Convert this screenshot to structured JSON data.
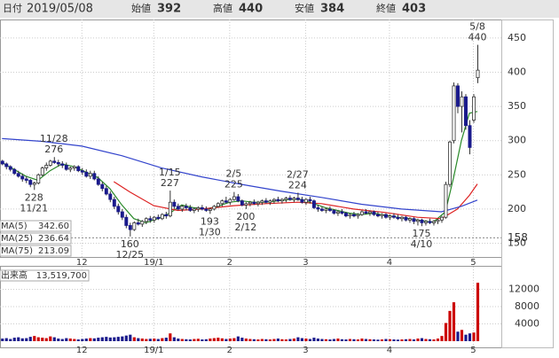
{
  "header": {
    "date_label": "日付",
    "date": "2019/05/08",
    "fields": [
      {
        "label": "始値",
        "value": 392,
        "color": "#222222"
      },
      {
        "label": "高値",
        "value": 440,
        "color": "#cc0000"
      },
      {
        "label": "安値",
        "value": 384,
        "color": "#1a1a8c"
      },
      {
        "label": "終値",
        "value": 403,
        "color": "#222222"
      }
    ]
  },
  "chart_data": {
    "type": "candlestick",
    "xlim": [
      -0.5,
      125
    ],
    "xticks": [
      {
        "value": 20,
        "label": "12"
      },
      {
        "value": 38,
        "label": "19/1"
      },
      {
        "value": 57,
        "label": "2"
      },
      {
        "value": 76,
        "label": "3"
      },
      {
        "value": 97,
        "label": "4"
      },
      {
        "value": 118,
        "label": "5"
      }
    ],
    "ylim": [
      130,
      477
    ],
    "yticks": [
      150,
      200,
      250,
      300,
      350,
      400,
      450
    ],
    "grid": true,
    "up_color": "#ffffff",
    "down_color": "#1a1a8c",
    "reference_line": {
      "value": 158,
      "color": "#e07020"
    },
    "candles": [
      [
        270,
        272,
        264,
        266
      ],
      [
        266,
        268,
        258,
        262
      ],
      [
        262,
        264,
        255,
        258
      ],
      [
        258,
        260,
        250,
        252
      ],
      [
        252,
        256,
        246,
        248
      ],
      [
        248,
        252,
        240,
        244
      ],
      [
        244,
        248,
        238,
        242
      ],
      [
        242,
        244,
        232,
        236
      ],
      [
        236,
        240,
        228,
        238
      ],
      [
        238,
        252,
        236,
        250
      ],
      [
        250,
        262,
        248,
        260
      ],
      [
        260,
        268,
        256,
        264
      ],
      [
        264,
        272,
        262,
        270
      ],
      [
        270,
        276,
        266,
        268
      ],
      [
        268,
        272,
        262,
        266
      ],
      [
        266,
        270,
        260,
        264
      ],
      [
        264,
        268,
        256,
        258
      ],
      [
        258,
        262,
        254,
        260
      ],
      [
        260,
        264,
        256,
        262
      ],
      [
        262,
        264,
        254,
        256
      ],
      [
        256,
        260,
        250,
        254
      ],
      [
        254,
        258,
        246,
        248
      ],
      [
        248,
        256,
        244,
        252
      ],
      [
        252,
        256,
        242,
        244
      ],
      [
        244,
        248,
        234,
        236
      ],
      [
        236,
        240,
        226,
        230
      ],
      [
        230,
        234,
        220,
        222
      ],
      [
        222,
        226,
        210,
        214
      ],
      [
        214,
        218,
        200,
        204
      ],
      [
        204,
        208,
        192,
        196
      ],
      [
        196,
        200,
        184,
        188
      ],
      [
        188,
        192,
        172,
        176
      ],
      [
        176,
        180,
        160,
        170
      ],
      [
        170,
        182,
        168,
        180
      ],
      [
        180,
        186,
        176,
        178
      ],
      [
        178,
        184,
        174,
        182
      ],
      [
        182,
        188,
        178,
        186
      ],
      [
        186,
        190,
        180,
        184
      ],
      [
        184,
        190,
        180,
        188
      ],
      [
        188,
        192,
        184,
        186
      ],
      [
        186,
        194,
        184,
        192
      ],
      [
        192,
        196,
        186,
        190
      ],
      [
        190,
        227,
        188,
        210
      ],
      [
        210,
        214,
        200,
        204
      ],
      [
        204,
        208,
        198,
        200
      ],
      [
        200,
        206,
        196,
        204
      ],
      [
        204,
        208,
        198,
        202
      ],
      [
        202,
        206,
        196,
        198
      ],
      [
        198,
        202,
        194,
        200
      ],
      [
        200,
        204,
        196,
        202
      ],
      [
        202,
        206,
        198,
        200
      ],
      [
        200,
        204,
        196,
        198
      ],
      [
        198,
        202,
        193,
        200
      ],
      [
        200,
        206,
        198,
        204
      ],
      [
        204,
        210,
        202,
        208
      ],
      [
        208,
        214,
        204,
        212
      ],
      [
        212,
        218,
        208,
        210
      ],
      [
        210,
        216,
        206,
        214
      ],
      [
        214,
        225,
        212,
        218
      ],
      [
        218,
        222,
        210,
        212
      ],
      [
        212,
        214,
        204,
        206
      ],
      [
        206,
        210,
        200,
        208
      ],
      [
        208,
        212,
        204,
        210
      ],
      [
        210,
        214,
        206,
        208
      ],
      [
        208,
        212,
        204,
        210
      ],
      [
        210,
        214,
        206,
        212
      ],
      [
        212,
        216,
        208,
        210
      ],
      [
        210,
        214,
        206,
        212
      ],
      [
        212,
        216,
        208,
        214
      ],
      [
        214,
        218,
        210,
        212
      ],
      [
        212,
        216,
        208,
        214
      ],
      [
        214,
        218,
        210,
        216
      ],
      [
        216,
        220,
        212,
        214
      ],
      [
        214,
        218,
        210,
        216
      ],
      [
        216,
        224,
        212,
        214
      ],
      [
        214,
        218,
        208,
        210
      ],
      [
        210,
        216,
        206,
        214
      ],
      [
        214,
        218,
        208,
        212
      ],
      [
        212,
        214,
        200,
        202
      ],
      [
        202,
        206,
        196,
        200
      ],
      [
        200,
        204,
        196,
        198
      ],
      [
        198,
        202,
        194,
        200
      ],
      [
        200,
        204,
        196,
        198
      ],
      [
        198,
        200,
        192,
        194
      ],
      [
        194,
        198,
        190,
        196
      ],
      [
        196,
        200,
        192,
        194
      ],
      [
        194,
        196,
        188,
        190
      ],
      [
        190,
        194,
        186,
        192
      ],
      [
        192,
        196,
        188,
        190
      ],
      [
        190,
        194,
        186,
        192
      ],
      [
        192,
        198,
        190,
        196
      ],
      [
        196,
        200,
        192,
        194
      ],
      [
        194,
        198,
        190,
        196
      ],
      [
        196,
        198,
        190,
        192
      ],
      [
        192,
        196,
        188,
        190
      ],
      [
        190,
        194,
        186,
        192
      ],
      [
        192,
        194,
        186,
        188
      ],
      [
        188,
        192,
        184,
        190
      ],
      [
        190,
        194,
        186,
        188
      ],
      [
        188,
        192,
        184,
        186
      ],
      [
        186,
        190,
        182,
        188
      ],
      [
        188,
        190,
        182,
        184
      ],
      [
        184,
        188,
        180,
        186
      ],
      [
        186,
        188,
        178,
        182
      ],
      [
        182,
        186,
        176,
        184
      ],
      [
        184,
        186,
        175,
        180
      ],
      [
        180,
        184,
        176,
        182
      ],
      [
        182,
        186,
        178,
        180
      ],
      [
        180,
        184,
        176,
        182
      ],
      [
        182,
        186,
        178,
        184
      ],
      [
        184,
        190,
        180,
        188
      ],
      [
        188,
        240,
        186,
        236
      ],
      [
        236,
        300,
        232,
        298
      ],
      [
        300,
        385,
        296,
        380
      ],
      [
        380,
        384,
        340,
        350
      ],
      [
        350,
        372,
        312,
        364
      ],
      [
        364,
        368,
        316,
        322
      ],
      [
        322,
        330,
        280,
        290
      ],
      [
        330,
        368,
        326,
        364
      ],
      [
        392,
        440,
        384,
        403
      ]
    ],
    "series": [
      {
        "name": "MA(5)",
        "color": "#2a8a2a",
        "value_label": "342.60",
        "x": [
          0,
          3,
          6,
          9,
          12,
          15,
          18,
          21,
          24,
          27,
          30,
          33,
          36,
          39,
          42,
          45,
          48,
          51,
          54,
          57,
          60,
          63,
          66,
          69,
          72,
          75,
          78,
          81,
          84,
          87,
          90,
          93,
          96,
          99,
          102,
          105,
          108,
          111,
          113,
          115,
          117,
          119
        ],
        "values": [
          268,
          258,
          248,
          242,
          256,
          266,
          262,
          254,
          246,
          230,
          206,
          186,
          180,
          186,
          194,
          206,
          202,
          200,
          204,
          210,
          212,
          210,
          210,
          212,
          214,
          214,
          208,
          202,
          198,
          194,
          192,
          194,
          191,
          188,
          186,
          183,
          181,
          196,
          245,
          300,
          340,
          342.6
        ]
      },
      {
        "name": "MA(25)",
        "color": "#dd2222",
        "value_label": "236.64",
        "x": [
          28,
          32,
          38,
          44,
          50,
          58,
          66,
          74,
          80,
          88,
          96,
          104,
          110,
          114,
          117,
          119
        ],
        "values": [
          240,
          225,
          205,
          198,
          200,
          205,
          208,
          210,
          208,
          200,
          195,
          188,
          186,
          200,
          220,
          236.64
        ]
      },
      {
        "name": "MA(75)",
        "color": "#3344cc",
        "value_label": "213.09",
        "x": [
          0,
          10,
          20,
          30,
          40,
          50,
          60,
          70,
          80,
          90,
          100,
          110,
          115,
          119
        ],
        "values": [
          303,
          299,
          292,
          278,
          260,
          247,
          236,
          226,
          217,
          207,
          200,
          196,
          204,
          213.09
        ]
      }
    ],
    "annotations": [
      {
        "x": 13,
        "date": "11/28",
        "value": 276,
        "position": "high"
      },
      {
        "x": 8,
        "date": "11/21",
        "value": 228,
        "position": "low"
      },
      {
        "x": 32,
        "date": "12/25",
        "value": 160,
        "position": "low"
      },
      {
        "x": 42,
        "date": "1/15",
        "value": 227,
        "position": "high"
      },
      {
        "x": 52,
        "date": "1/30",
        "value": 193,
        "position": "low"
      },
      {
        "x": 58,
        "date": "2/5",
        "value": 225,
        "position": "high"
      },
      {
        "x": 61,
        "date": "2/12",
        "value": 200,
        "position": "low"
      },
      {
        "x": 74,
        "date": "2/27",
        "value": 224,
        "position": "high"
      },
      {
        "x": 105,
        "date": "4/10",
        "value": 175,
        "position": "low"
      },
      {
        "x": 119,
        "date": "5/8",
        "value": 440,
        "position": "high"
      }
    ],
    "volume": {
      "name": "出来高",
      "total_label": "13,519,700",
      "up_color": "#cc0000",
      "down_color": "#1a1a8c",
      "ylim": [
        0,
        16400
      ],
      "yticks": [
        4000,
        8000,
        12000
      ],
      "values": [
        600,
        700,
        500,
        800,
        900,
        650,
        700,
        1000,
        1200,
        900,
        800,
        700,
        1100,
        900,
        600,
        500,
        700,
        600,
        500,
        400,
        500,
        600,
        700,
        650,
        800,
        900,
        1000,
        850,
        900,
        1000,
        1100,
        1300,
        1500,
        900,
        700,
        600,
        500,
        550,
        600,
        500,
        700,
        800,
        1800,
        900,
        600,
        500,
        450,
        400,
        500,
        550,
        400,
        450,
        600,
        700,
        800,
        650,
        500,
        600,
        700,
        1100,
        800,
        600,
        500,
        450,
        400,
        500,
        450,
        400,
        500,
        600,
        450,
        400,
        500,
        600,
        900,
        700,
        600,
        500,
        800,
        600,
        500,
        450,
        400,
        500,
        600,
        450,
        400,
        500,
        450,
        400,
        600,
        500,
        450,
        400,
        350,
        400,
        500,
        450,
        400,
        350,
        400,
        450,
        500,
        400,
        600,
        700,
        500,
        450,
        400,
        600,
        1200,
        4200,
        7000,
        9000,
        2200,
        2600,
        1500,
        1800,
        2000,
        13519.7
      ]
    }
  }
}
